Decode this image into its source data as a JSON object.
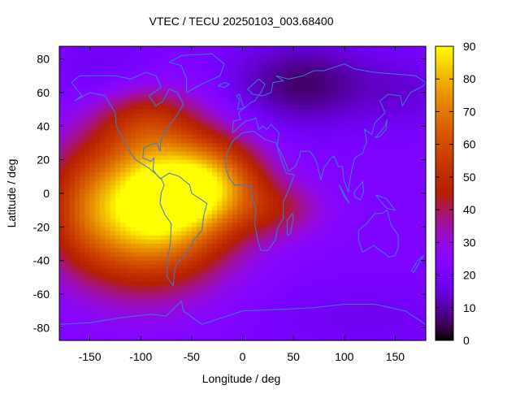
{
  "chart_data": {
    "type": "heatmap",
    "title": "VTEC / TECU 20250103_003.68400",
    "xlabel": "Longitude / deg",
    "ylabel": "Latitude / deg",
    "xlim": [
      -180,
      180
    ],
    "ylim": [
      -87.5,
      87.5
    ],
    "x_ticks": [
      -150,
      -100,
      -50,
      0,
      50,
      100,
      150
    ],
    "x_tick_labels": [
      "-150",
      "-100",
      "-50",
      "0",
      "50",
      "100",
      "150"
    ],
    "y_ticks": [
      80,
      60,
      40,
      20,
      0,
      -20,
      -40,
      -60,
      -80
    ],
    "y_tick_labels": [
      "80",
      "60",
      "40",
      "20",
      "0",
      "-20",
      "-40",
      "-60",
      "-80"
    ],
    "colorbar": {
      "min": 0,
      "max": 90,
      "ticks": [
        0,
        10,
        20,
        30,
        40,
        50,
        60,
        70,
        80,
        90
      ],
      "tick_labels": [
        "0",
        "10",
        "20",
        "30",
        "40",
        "50",
        "60",
        "70",
        "80",
        "90"
      ],
      "colormap": "gnuplot-rgbformulae-7-5-15"
    },
    "grid": {
      "lon_step_deg": 5,
      "lat_step_deg": 2.5,
      "background_value": 22,
      "features": [
        {
          "kind": "peak",
          "lon": -95,
          "lat": -10,
          "value": 66,
          "sigma_lon": 55,
          "sigma_lat": 30
        },
        {
          "kind": "peak",
          "lon": -70,
          "lat": 5,
          "value": 18,
          "sigma_lon": 40,
          "sigma_lat": 22
        },
        {
          "kind": "peak",
          "lon": -25,
          "lat": 5,
          "value": 32,
          "sigma_lon": 35,
          "sigma_lat": 18
        },
        {
          "kind": "peak",
          "lon": 40,
          "lat": -10,
          "value": 14,
          "sigma_lon": 30,
          "sigma_lat": 12
        },
        {
          "kind": "peak",
          "lon": -95,
          "lat": 45,
          "value": 18,
          "sigma_lon": 35,
          "sigma_lat": 15
        },
        {
          "kind": "peak",
          "lon": -160,
          "lat": -10,
          "value": 10,
          "sigma_lon": 25,
          "sigma_lat": 25
        },
        {
          "kind": "trough",
          "lon": 60,
          "lat": 65,
          "value": -16,
          "sigma_lon": 50,
          "sigma_lat": 18
        },
        {
          "kind": "trough",
          "lon": -130,
          "lat": 70,
          "value": -6,
          "sigma_lon": 40,
          "sigma_lat": 15
        },
        {
          "kind": "trough",
          "lon": 160,
          "lat": 60,
          "value": -6,
          "sigma_lon": 30,
          "sigma_lat": 15
        },
        {
          "kind": "trough",
          "lon": 120,
          "lat": -75,
          "value": -4,
          "sigma_lon": 80,
          "sigma_lat": 15
        }
      ]
    },
    "overlay": "coastlines",
    "coastline_color": "#3a7bd5"
  }
}
